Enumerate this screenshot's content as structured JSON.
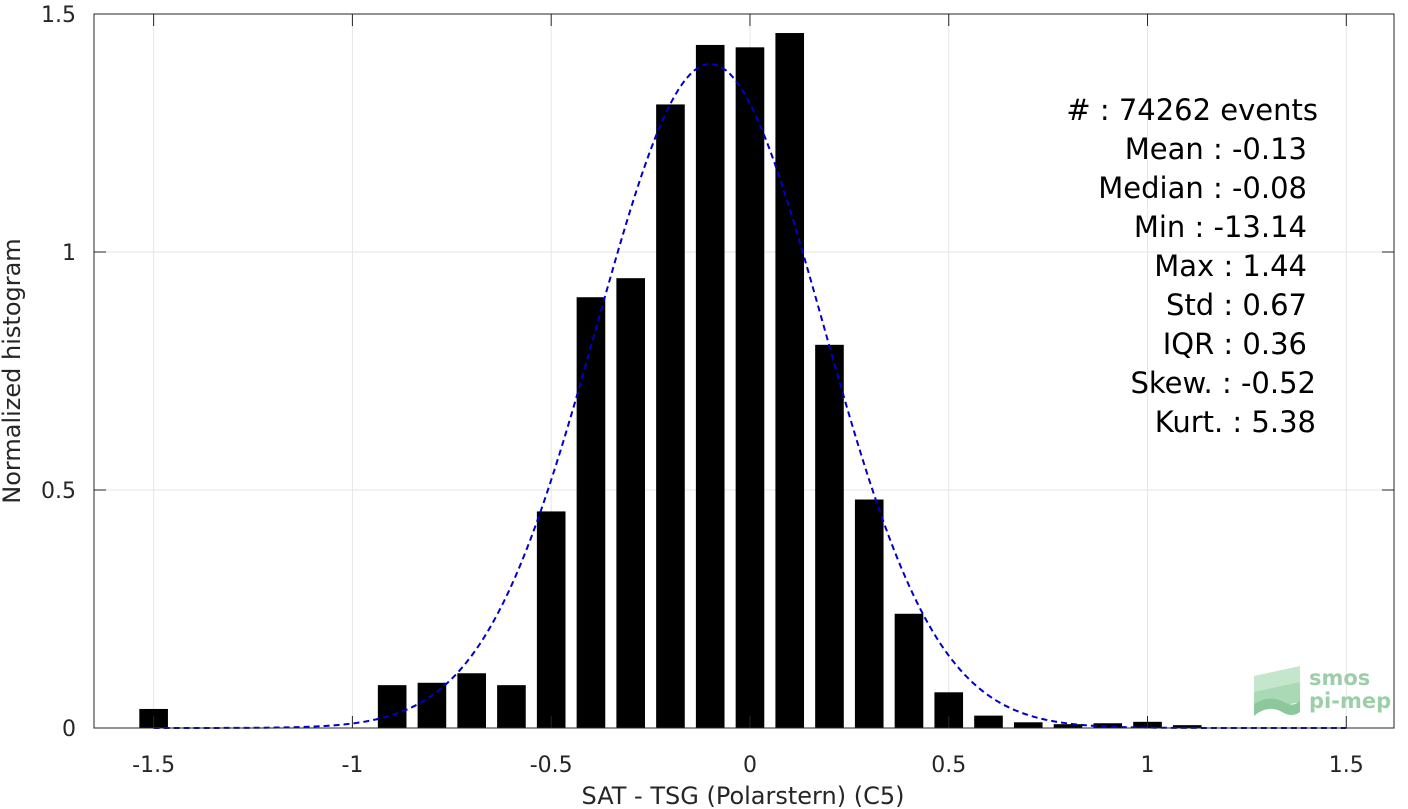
{
  "chart_data": {
    "type": "bar",
    "xlabel": "SAT - TSG (Polarstern) (C5)",
    "ylabel": "Normalized histogram",
    "xlim": [
      -1.65,
      1.62
    ],
    "ylim": [
      0,
      1.5
    ],
    "x_ticks": [
      -1.5,
      -1,
      -0.5,
      0,
      0.5,
      1,
      1.5
    ],
    "x_tick_labels": [
      "-1.5",
      "-1",
      "-0.5",
      "0",
      "0.5",
      "1",
      "1.5"
    ],
    "y_ticks": [
      0,
      0.5,
      1,
      1.5
    ],
    "y_tick_labels": [
      "0",
      "0.5",
      "1",
      "1.5"
    ],
    "grid": true,
    "bar_width": 0.072,
    "bar_color": "#000000",
    "bars": [
      {
        "x": -1.5,
        "y": 0.04
      },
      {
        "x": -0.9,
        "y": 0.09
      },
      {
        "x": -0.8,
        "y": 0.095
      },
      {
        "x": -0.7,
        "y": 0.115
      },
      {
        "x": -0.6,
        "y": 0.09
      },
      {
        "x": -0.5,
        "y": 0.455
      },
      {
        "x": -0.4,
        "y": 0.905
      },
      {
        "x": -0.3,
        "y": 0.945
      },
      {
        "x": -0.2,
        "y": 1.31
      },
      {
        "x": -0.1,
        "y": 1.435
      },
      {
        "x": 0.0,
        "y": 1.43
      },
      {
        "x": 0.1,
        "y": 1.46
      },
      {
        "x": 0.2,
        "y": 0.805
      },
      {
        "x": 0.3,
        "y": 0.48
      },
      {
        "x": 0.4,
        "y": 0.24
      },
      {
        "x": 0.5,
        "y": 0.075
      },
      {
        "x": 0.6,
        "y": 0.026
      },
      {
        "x": 0.7,
        "y": 0.012
      },
      {
        "x": 0.8,
        "y": 0.008
      },
      {
        "x": 0.9,
        "y": 0.01
      },
      {
        "x": 1.0,
        "y": 0.013
      },
      {
        "x": 1.1,
        "y": 0.006
      }
    ],
    "fit": {
      "color": "#0000cc",
      "mean": -0.1,
      "sigma": 0.285,
      "amplitude": 1.395,
      "x_range": [
        -1.5,
        1.5
      ]
    },
    "annotation": [
      "#  : 74262 events",
      "Mean : -0.13",
      "Median : -0.08",
      "Min : -13.14",
      "Max : 1.44",
      "Std : 0.67",
      "IQR : 0.36",
      "Skew. : -0.52",
      "Kurt. : 5.38"
    ]
  },
  "logo": {
    "line1": "smos",
    "line2": "pi-mep",
    "color": "#9ccfa8"
  }
}
